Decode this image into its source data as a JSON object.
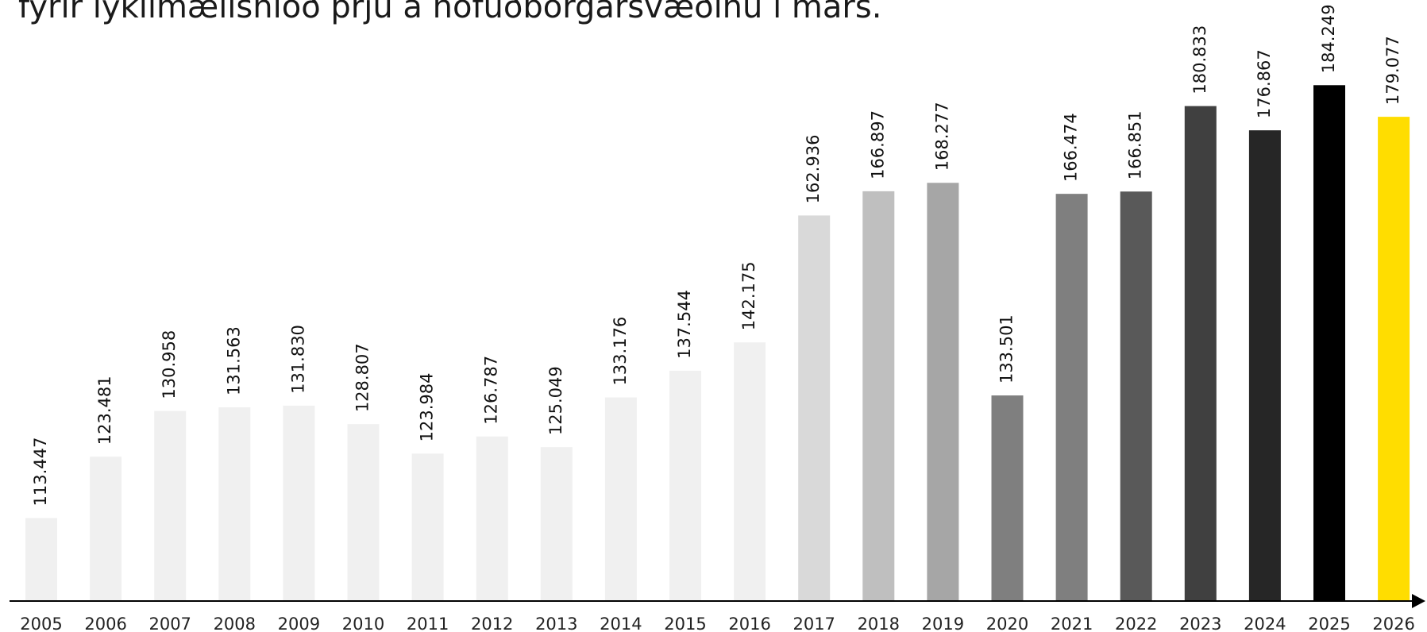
{
  "chart_data": {
    "type": "bar",
    "title": "fyrir lykilmælishlóð þrjú á höfuðborgarsvæðinu í mars.",
    "categories": [
      "2005",
      "2006",
      "2007",
      "2008",
      "2009",
      "2010",
      "2011",
      "2012",
      "2013",
      "2014",
      "2015",
      "2016",
      "2017",
      "2018",
      "2019",
      "2020",
      "2021",
      "2022",
      "2023",
      "2024",
      "2025",
      "2026"
    ],
    "values": [
      113447,
      123481,
      130958,
      131563,
      131830,
      128807,
      123984,
      126787,
      125049,
      133176,
      137544,
      142175,
      162936,
      166897,
      168277,
      133501,
      166474,
      166851,
      180833,
      176867,
      184249,
      179077
    ],
    "value_labels": [
      "113.447",
      "123.481",
      "130.958",
      "131.563",
      "131.830",
      "128.807",
      "123.984",
      "126.787",
      "125.049",
      "133.176",
      "137.544",
      "142.175",
      "162.936",
      "166.897",
      "168.277",
      "133.501",
      "166.474",
      "166.851",
      "180.833",
      "176.867",
      "184.249",
      "179.077"
    ],
    "colors": [
      "#f0f0f0",
      "#f0f0f0",
      "#f0f0f0",
      "#f0f0f0",
      "#f0f0f0",
      "#f0f0f0",
      "#f0f0f0",
      "#f0f0f0",
      "#f0f0f0",
      "#f0f0f0",
      "#f0f0f0",
      "#f0f0f0",
      "#d9d9d9",
      "#bfbfbf",
      "#a6a6a6",
      "#7f7f7f",
      "#7f7f7f",
      "#595959",
      "#404040",
      "#262626",
      "#000000",
      "#ffdd00"
    ],
    "ylim": [
      100000,
      190000
    ]
  }
}
